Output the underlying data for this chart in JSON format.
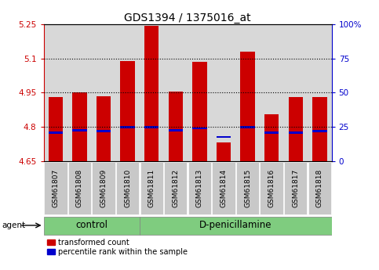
{
  "title": "GDS1394 / 1375016_at",
  "samples": [
    "GSM61807",
    "GSM61808",
    "GSM61809",
    "GSM61810",
    "GSM61811",
    "GSM61812",
    "GSM61813",
    "GSM61814",
    "GSM61815",
    "GSM61816",
    "GSM61817",
    "GSM61818"
  ],
  "red_values": [
    4.93,
    4.95,
    4.935,
    5.09,
    5.245,
    4.955,
    5.085,
    4.73,
    5.13,
    4.855,
    4.93,
    4.93
  ],
  "blue_values": [
    4.775,
    4.783,
    4.78,
    4.797,
    4.797,
    4.783,
    4.793,
    4.755,
    4.797,
    4.775,
    4.775,
    4.782
  ],
  "y_min": 4.65,
  "y_max": 5.25,
  "y_ticks": [
    4.65,
    4.8,
    4.95,
    5.1,
    5.25
  ],
  "y_tick_labels": [
    "4.65",
    "4.8",
    "4.95",
    "5.1",
    "5.25"
  ],
  "right_y_ticks": [
    0,
    25,
    50,
    75,
    100
  ],
  "right_y_tick_labels": [
    "0",
    "25",
    "50",
    "75",
    "100%"
  ],
  "grid_lines": [
    4.8,
    4.95,
    5.1
  ],
  "bar_width": 0.6,
  "control_count": 4,
  "group_labels": [
    "control",
    "D-penicillamine"
  ],
  "legend_labels": [
    "transformed count",
    "percentile rank within the sample"
  ],
  "red_color": "#CC0000",
  "blue_color": "#0000CC",
  "green_color": "#7FCC7F",
  "gray_color": "#C8C8C8",
  "agent_label": "agent",
  "title_fontsize": 10,
  "tick_fontsize": 7.5,
  "sample_fontsize": 6.5,
  "legend_fontsize": 7,
  "group_fontsize": 8.5
}
